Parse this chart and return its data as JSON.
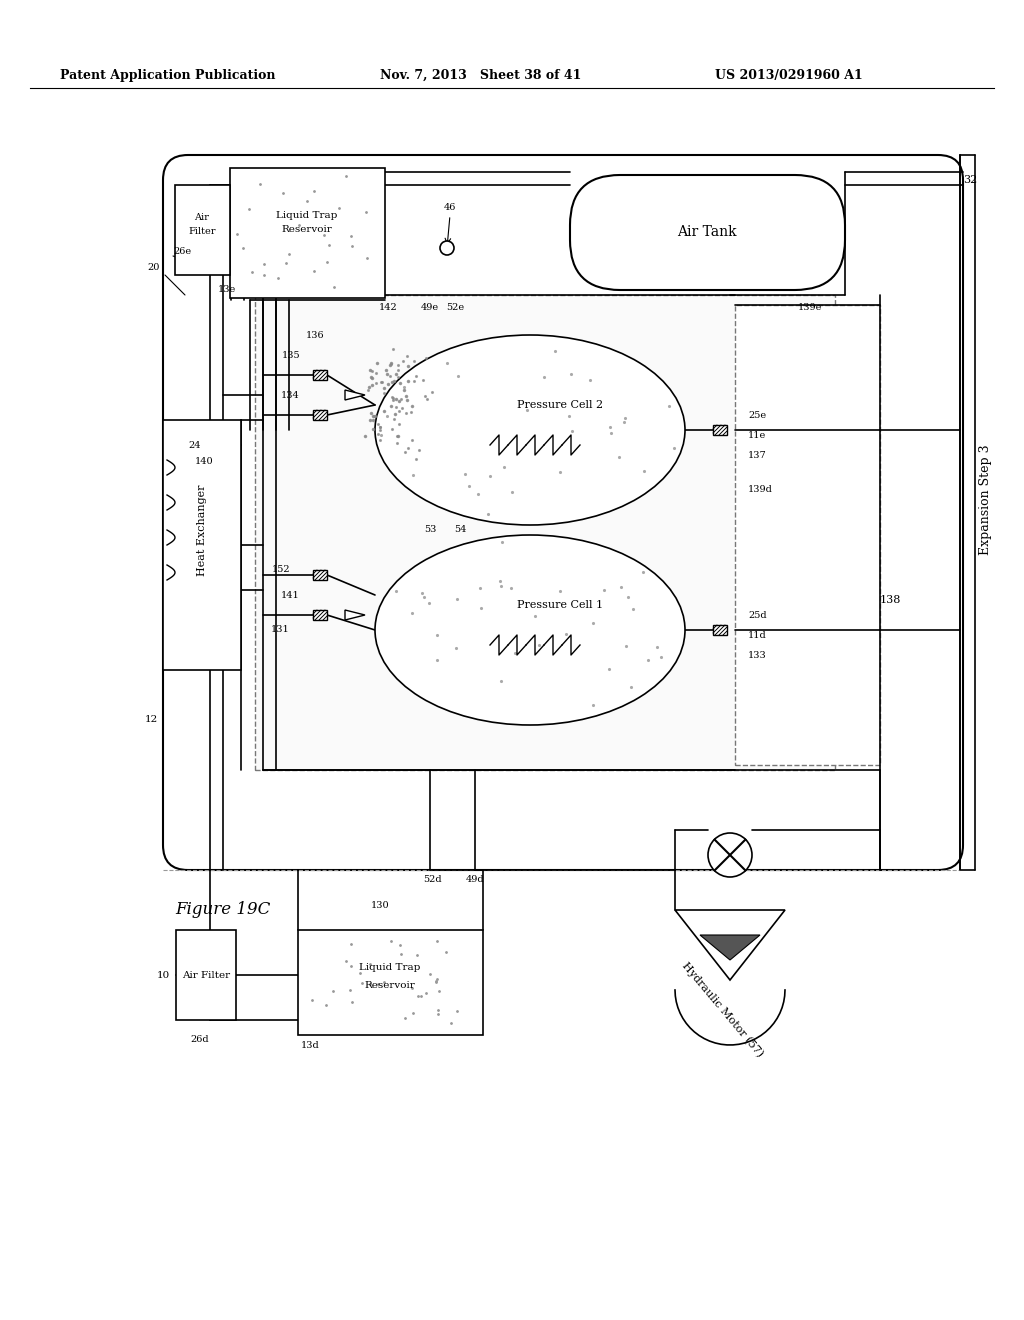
{
  "header_left": "Patent Application Publication",
  "header_mid": "Nov. 7, 2013   Sheet 38 of 41",
  "header_right": "US 2013/0291960 A1",
  "figure_label": "Figure 19C",
  "bg_color": "#ffffff",
  "lc": "#000000"
}
